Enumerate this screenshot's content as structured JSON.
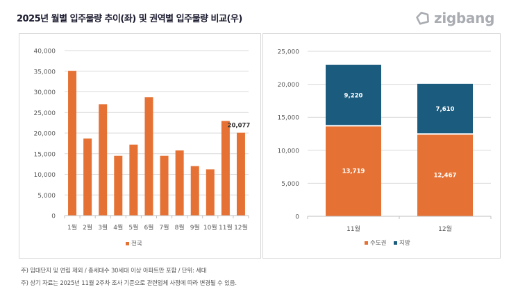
{
  "header": {
    "title": "2025년 월별 입주물량 추이(좌) 및 권역별 입주물량 비교(우)",
    "logo_text": "zigbang",
    "logo_icon": "zigbang-logo-icon"
  },
  "colors": {
    "orange": "#E57234",
    "navy": "#1B5B7E",
    "grid": "#d9d9d9",
    "axis_text": "#595959"
  },
  "chart_data": [
    {
      "type": "bar",
      "title": "2025년 월별 입주물량 추이",
      "categories": [
        "1월",
        "2월",
        "3월",
        "4월",
        "5월",
        "6월",
        "7월",
        "8월",
        "9월",
        "10월",
        "11월",
        "12월"
      ],
      "series": [
        {
          "name": "전국",
          "values": [
            35100,
            18700,
            27000,
            14500,
            17200,
            28700,
            14500,
            15800,
            12000,
            11200,
            22939,
            20077
          ]
        }
      ],
      "data_labels": [
        {
          "category": "12월",
          "text": "20,077"
        }
      ],
      "yticks": [
        "0",
        "5,000",
        "10,000",
        "15,000",
        "20,000",
        "25,000",
        "30,000",
        "35,000",
        "40,000"
      ],
      "ylim": [
        0,
        40000
      ],
      "grid": true,
      "legend": "bottom",
      "xlabel": "",
      "ylabel": ""
    },
    {
      "type": "bar",
      "stacked": true,
      "title": "권역별 입주물량 비교",
      "categories": [
        "11월",
        "12월"
      ],
      "series": [
        {
          "name": "수도권",
          "values": [
            13719,
            12467
          ],
          "labels": [
            "13,719",
            "12,467"
          ]
        },
        {
          "name": "지방",
          "values": [
            9220,
            7610
          ],
          "labels": [
            "9,220",
            "7,610"
          ]
        }
      ],
      "yticks": [
        "0",
        "5,000",
        "10,000",
        "15,000",
        "20,000",
        "25,000"
      ],
      "ylim": [
        0,
        25000
      ],
      "grid": true,
      "legend": "bottom",
      "xlabel": "",
      "ylabel": ""
    }
  ],
  "footnotes": [
    "주) 임대단지 및 연립 제외 / 총세대수 30세대 이상 아파트만 포함 / 단위: 세대",
    "주) 상기 자료는 2025년 11월 2주차 조사 기준으로 관련업체 사정에 따라 변경될 수 있음."
  ]
}
